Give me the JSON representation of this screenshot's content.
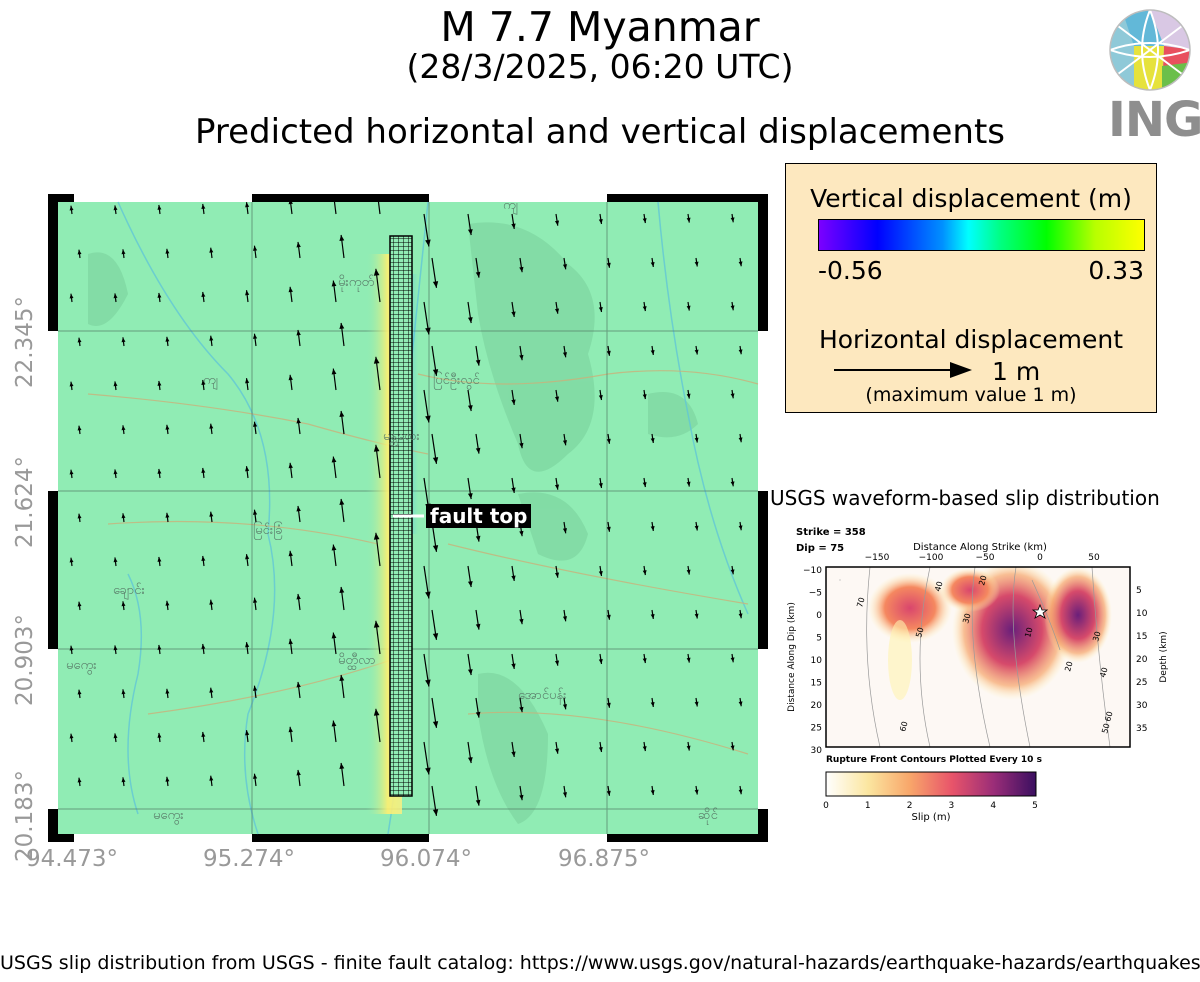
{
  "header": {
    "title": "M 7.7 Myanmar",
    "subtitle": "(28/3/2025, 06:20 UTC)",
    "heading": "Predicted horizontal and vertical displacements",
    "logo_text": "INGV"
  },
  "legend": {
    "vertical_title": "Vertical displacement (m)",
    "colorbar_min": "-0.56",
    "colorbar_max": "0.33",
    "horizontal_title": "Horizontal displacement",
    "scale_label": "1 m",
    "max_note": "(maximum value 1 m)",
    "colors": [
      "#7b00ff",
      "#0000ff",
      "#0090ff",
      "#00ffff",
      "#00ff80",
      "#00ff00",
      "#b8ff00",
      "#ffff00"
    ]
  },
  "map": {
    "lat_labels": [
      "22.345°",
      "21.624°",
      "20.903°",
      "20.183°"
    ],
    "lon_labels": [
      "94.473°",
      "95.274°",
      "96.074°",
      "96.875°"
    ],
    "fault_label": "fault top",
    "land_color": "#90ecb4"
  },
  "slip_panel": {
    "title": "USGS waveform-based slip distribution",
    "strike": "Strike = 358",
    "dip": "Dip = 75",
    "x_axis_label": "Distance Along Strike (km)",
    "x_ticks": [
      "−150",
      "−100",
      "−50",
      "0",
      "50"
    ],
    "y_axis_label": "Distance Along Dip (km)",
    "y_ticks": [
      "−10",
      "−5",
      "0",
      "5",
      "10",
      "15",
      "20",
      "25",
      "30"
    ],
    "depth_label": "Depth (km)",
    "depth_ticks": [
      "5",
      "10",
      "15",
      "20",
      "25",
      "30",
      "35"
    ],
    "contour_note": "Rupture Front Contours Plotted Every 10 s",
    "slip_label": "Slip (m)",
    "slip_ticks": [
      "0",
      "1",
      "2",
      "3",
      "4",
      "5"
    ],
    "contour_values": [
      "40",
      "20",
      "70",
      "30",
      "50",
      "10",
      "30",
      "20",
      "40",
      "60",
      "60",
      "50"
    ]
  },
  "footer": {
    "text": "USGS slip distribution from USGS - finite fault catalog: https://www.usgs.gov/natural-hazards/earthquake-hazards/earthquakes"
  }
}
